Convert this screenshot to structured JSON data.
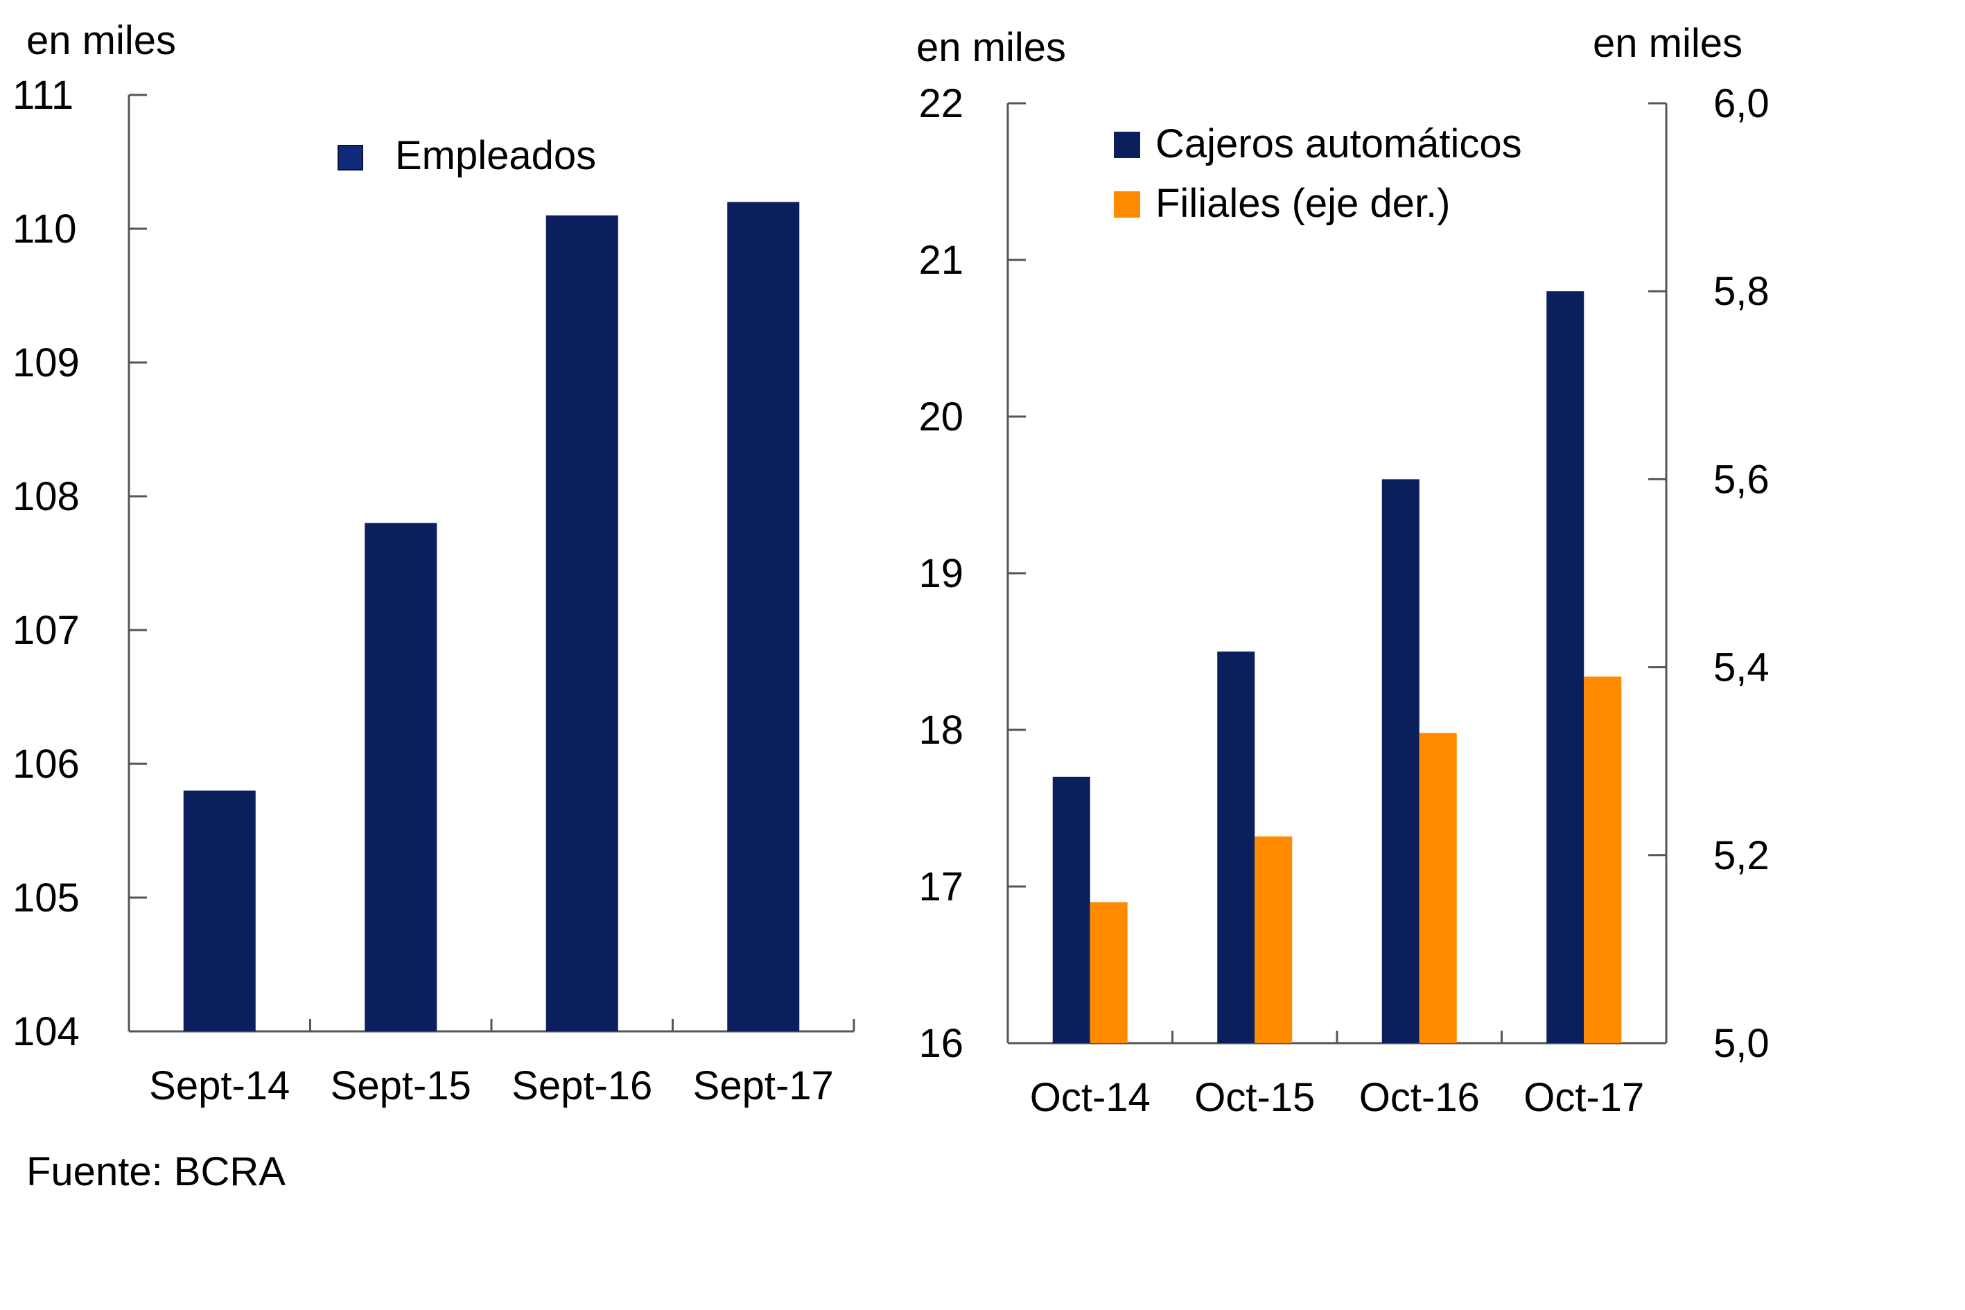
{
  "colors": {
    "navy": "#0B1F5C",
    "legend_navy": "#0E2A7A",
    "orange": "#FF8A00",
    "axis": "#555555"
  },
  "chart_data": [
    {
      "type": "bar",
      "ylabel": "en miles",
      "categories": [
        "Sept-14",
        "Sept-15",
        "Sept-16",
        "Sept-17"
      ],
      "series": [
        {
          "name": "Empleados",
          "values": [
            105.8,
            107.8,
            110.1,
            110.2
          ]
        }
      ],
      "ylim": [
        104,
        111
      ],
      "yticks": [
        "104",
        "105",
        "106",
        "107",
        "108",
        "109",
        "110",
        "111"
      ],
      "legend": "top-center",
      "grid": false
    },
    {
      "type": "bar",
      "ylabel": "en miles",
      "ylabel_right": "en miles",
      "categories": [
        "Oct-14",
        "Oct-15",
        "Oct-16",
        "Oct-17"
      ],
      "series": [
        {
          "name": "Cajeros automáticos",
          "axis": "left",
          "values": [
            17.7,
            18.5,
            19.6,
            20.8
          ]
        },
        {
          "name": "Filiales (eje der.)",
          "axis": "right",
          "values": [
            5.15,
            5.22,
            5.33,
            5.39
          ]
        }
      ],
      "ylim": [
        16,
        22
      ],
      "ylim_right": [
        5.0,
        6.0
      ],
      "yticks": [
        "16",
        "17",
        "18",
        "19",
        "20",
        "21",
        "22"
      ],
      "yticks_right": [
        "5,0",
        "5,2",
        "5,4",
        "5,6",
        "5,8",
        "6,0"
      ],
      "legend": "top-center",
      "grid": false
    }
  ],
  "source": "Fuente: BCRA"
}
